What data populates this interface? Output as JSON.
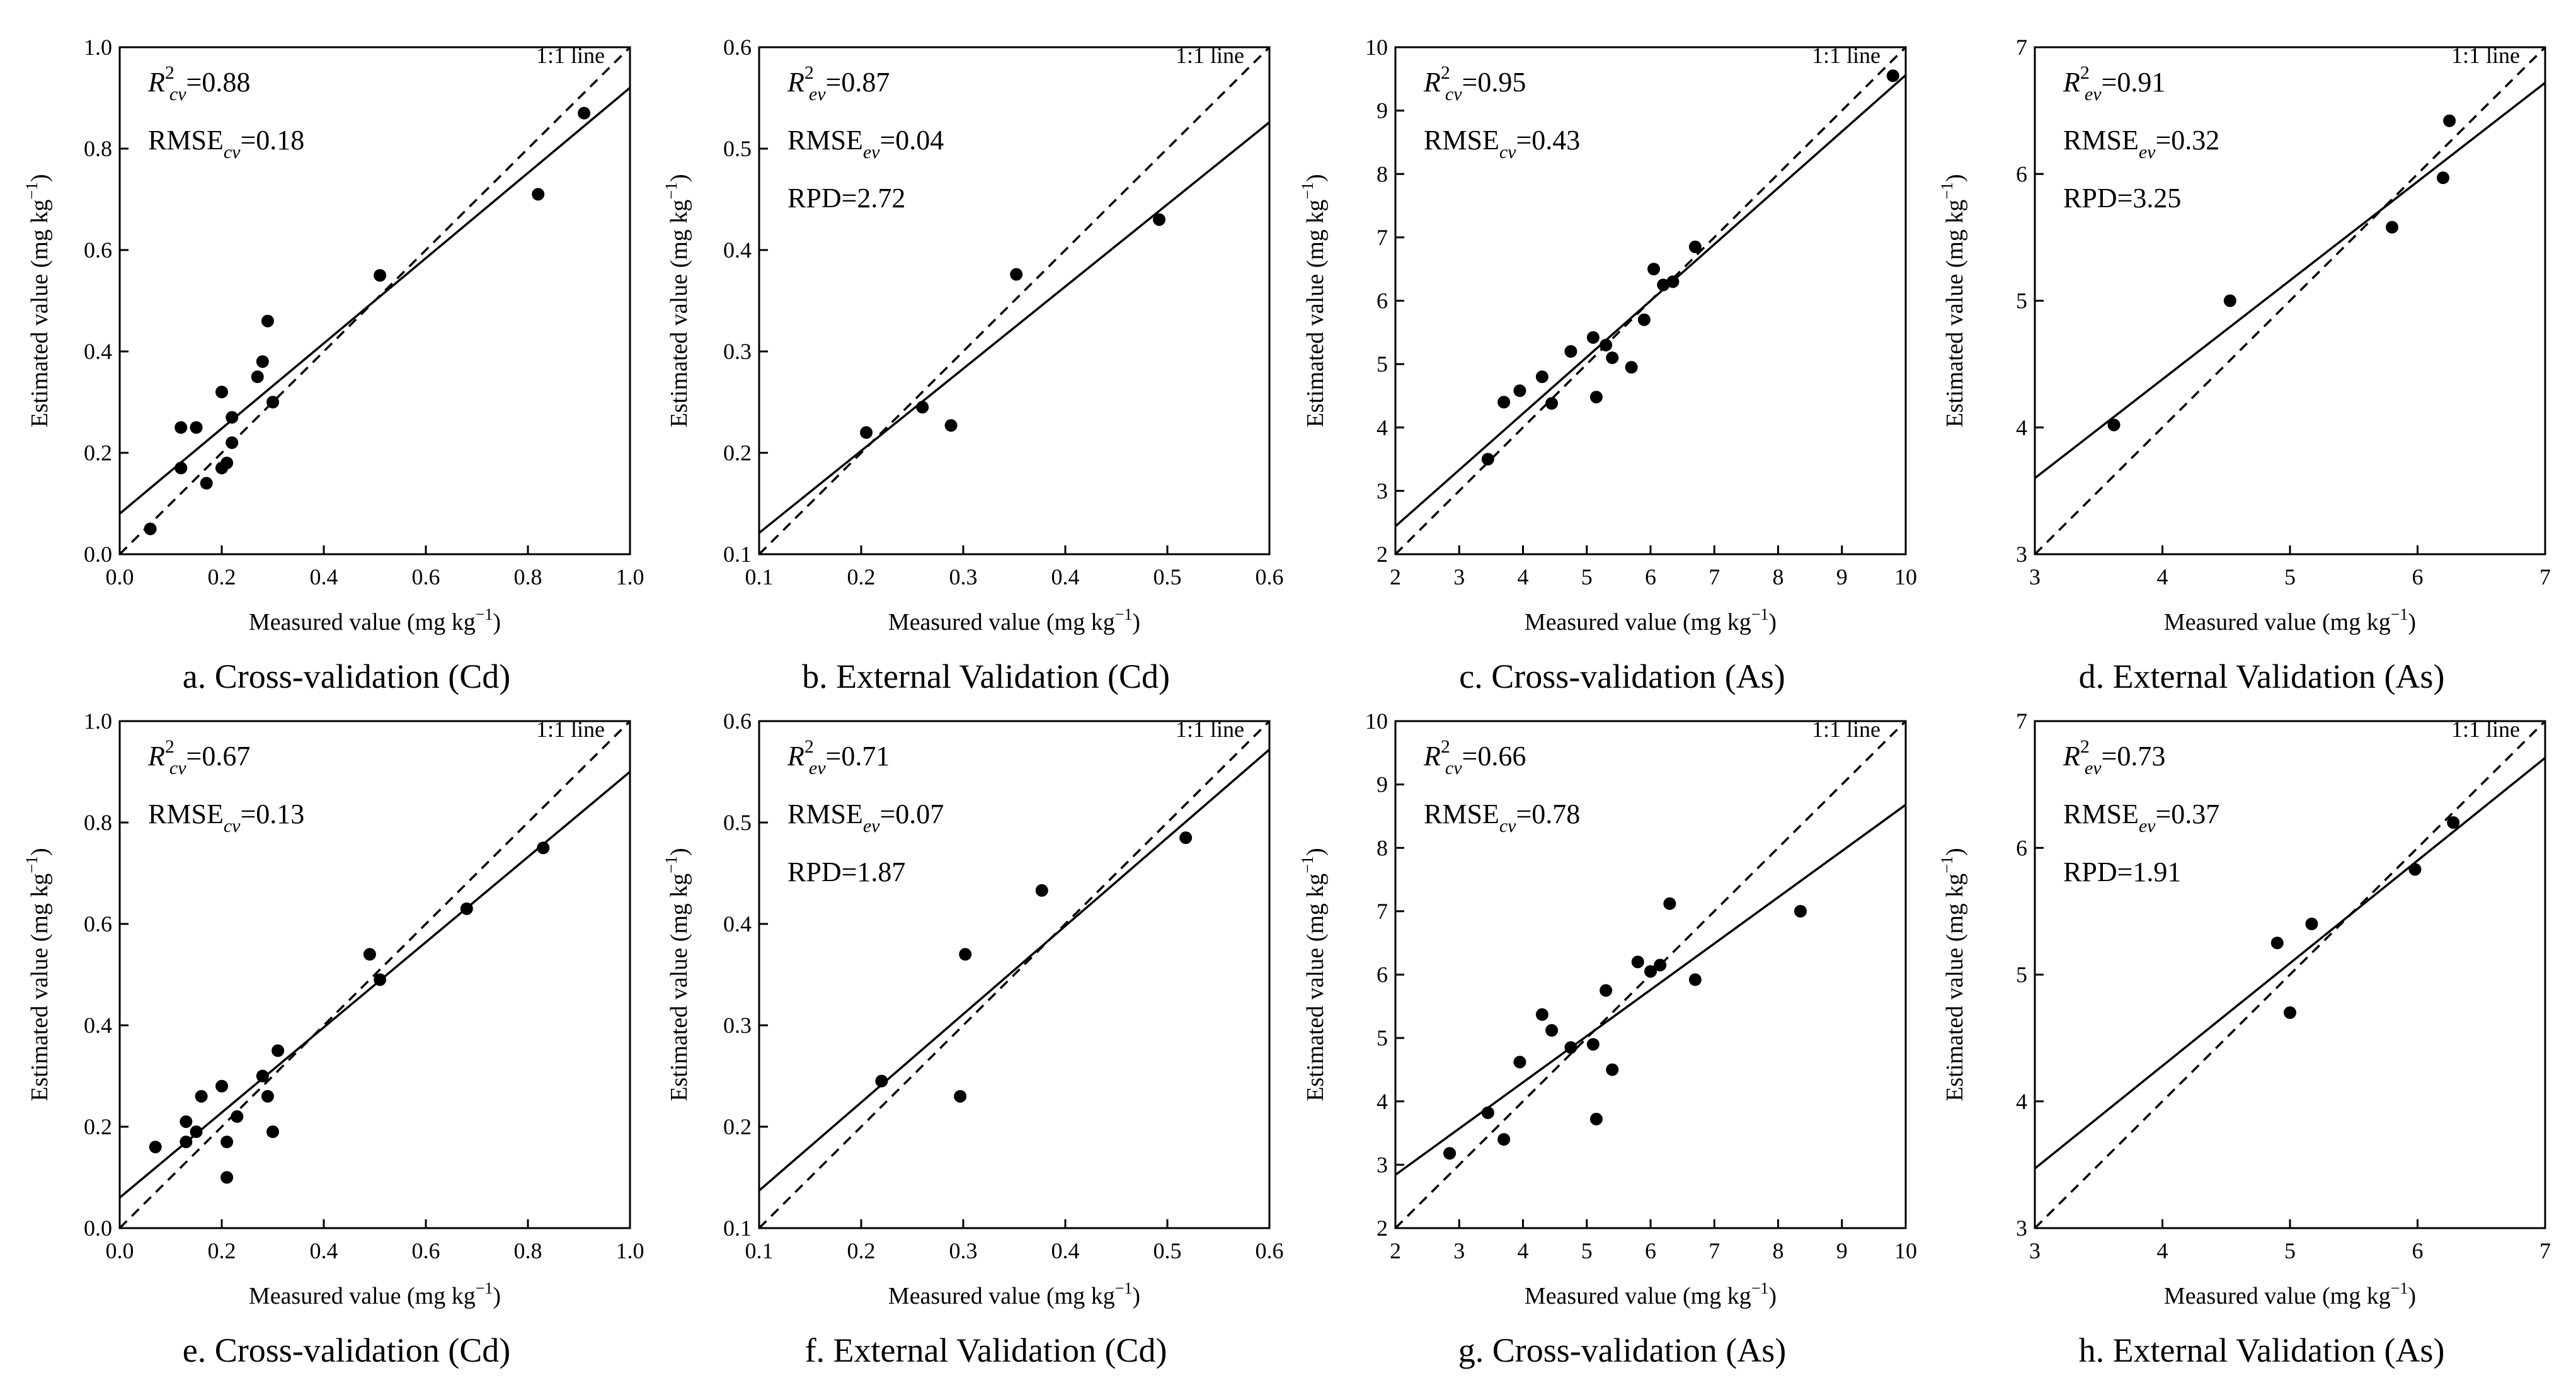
{
  "chart_data": [
    {
      "id": "a",
      "type": "scatter",
      "caption": "a. Cross-validation (Cd)",
      "xlabel": "Measured value (mg kg",
      "ylabel": "Estimated value (mg kg",
      "unit_exp": "−1",
      "unit_close": ")",
      "xlim": [
        0.0,
        1.0
      ],
      "ylim": [
        0.0,
        1.0
      ],
      "xticks": [
        0.0,
        0.2,
        0.4,
        0.6,
        0.8,
        1.0
      ],
      "yticks": [
        0.0,
        0.2,
        0.4,
        0.6,
        0.8,
        1.0
      ],
      "tick_decimals": 1,
      "line_label": "1:1 line",
      "fit": {
        "slope": 0.84,
        "intercept": 0.08
      },
      "stats": [
        {
          "prefix": "R",
          "sup": "2",
          "sub": "cv",
          "value": "=0.88"
        },
        {
          "prefix": "RMSE",
          "sup": "",
          "sub": "cv",
          "value": "=0.18"
        }
      ],
      "points": [
        [
          0.06,
          0.05
        ],
        [
          0.12,
          0.25
        ],
        [
          0.12,
          0.17
        ],
        [
          0.15,
          0.25
        ],
        [
          0.17,
          0.14
        ],
        [
          0.2,
          0.32
        ],
        [
          0.2,
          0.17
        ],
        [
          0.21,
          0.18
        ],
        [
          0.22,
          0.27
        ],
        [
          0.22,
          0.22
        ],
        [
          0.27,
          0.35
        ],
        [
          0.28,
          0.38
        ],
        [
          0.29,
          0.46
        ],
        [
          0.3,
          0.3
        ],
        [
          0.51,
          0.55
        ],
        [
          0.82,
          0.71
        ],
        [
          0.91,
          0.87
        ]
      ]
    },
    {
      "id": "b",
      "type": "scatter",
      "caption": "b. External Validation (Cd)",
      "xlabel": "Measured value (mg kg",
      "ylabel": "Estimated value (mg kg",
      "unit_exp": "−1",
      "unit_close": ")",
      "xlim": [
        0.1,
        0.6
      ],
      "ylim": [
        0.1,
        0.6
      ],
      "xticks": [
        0.1,
        0.2,
        0.3,
        0.4,
        0.5,
        0.6
      ],
      "yticks": [
        0.1,
        0.2,
        0.3,
        0.4,
        0.5,
        0.6
      ],
      "tick_decimals": 1,
      "line_label": "1:1 line",
      "fit": {
        "slope": 0.81,
        "intercept": 0.04
      },
      "stats": [
        {
          "prefix": "R",
          "sup": "2",
          "sub": "ev",
          "value": "=0.87"
        },
        {
          "prefix": "RMSE",
          "sup": "",
          "sub": "ev",
          "value": "=0.04"
        },
        {
          "prefix": "RPD",
          "sup": "",
          "sub": "",
          "value": "=2.72"
        }
      ],
      "points": [
        [
          0.205,
          0.22
        ],
        [
          0.26,
          0.245
        ],
        [
          0.288,
          0.227
        ],
        [
          0.352,
          0.376
        ],
        [
          0.492,
          0.43
        ]
      ]
    },
    {
      "id": "c",
      "type": "scatter",
      "caption": "c. Cross-validation (As)",
      "xlabel": "Measured value (mg kg",
      "ylabel": "Estimated value (mg kg",
      "unit_exp": "−1",
      "unit_close": ")",
      "xlim": [
        2,
        10
      ],
      "ylim": [
        2,
        10
      ],
      "xticks": [
        2,
        3,
        4,
        5,
        6,
        7,
        8,
        9,
        10
      ],
      "yticks": [
        2,
        3,
        4,
        5,
        6,
        7,
        8,
        9,
        10
      ],
      "tick_decimals": 0,
      "line_label": "1:1 line",
      "fit": {
        "slope": 0.89,
        "intercept": 0.66
      },
      "stats": [
        {
          "prefix": "R",
          "sup": "2",
          "sub": "cv",
          "value": "=0.95"
        },
        {
          "prefix": "RMSE",
          "sup": "",
          "sub": "cv",
          "value": "=0.43"
        }
      ],
      "points": [
        [
          3.45,
          3.5
        ],
        [
          3.7,
          4.4
        ],
        [
          3.95,
          4.58
        ],
        [
          4.3,
          4.8
        ],
        [
          4.45,
          4.38
        ],
        [
          4.75,
          5.2
        ],
        [
          5.1,
          5.42
        ],
        [
          5.15,
          4.48
        ],
        [
          5.3,
          5.3
        ],
        [
          5.4,
          5.1
        ],
        [
          5.7,
          4.95
        ],
        [
          5.9,
          5.7
        ],
        [
          6.05,
          6.5
        ],
        [
          6.2,
          6.25
        ],
        [
          6.35,
          6.3
        ],
        [
          6.7,
          6.85
        ],
        [
          9.8,
          9.55
        ]
      ]
    },
    {
      "id": "d",
      "type": "scatter",
      "caption": "d. External Validation (As)",
      "xlabel": "Measured value (mg kg",
      "ylabel": "Estimated value (mg kg",
      "unit_exp": "−1",
      "unit_close": ")",
      "xlim": [
        3,
        7
      ],
      "ylim": [
        3,
        7
      ],
      "xticks": [
        3,
        4,
        5,
        6,
        7
      ],
      "yticks": [
        3,
        4,
        5,
        6,
        7
      ],
      "tick_decimals": 0,
      "line_label": "1:1 line",
      "fit": {
        "slope": 0.78,
        "intercept": 1.26
      },
      "stats": [
        {
          "prefix": "R",
          "sup": "2",
          "sub": "ev",
          "value": "=0.91"
        },
        {
          "prefix": "RMSE",
          "sup": "",
          "sub": "ev",
          "value": "=0.32"
        },
        {
          "prefix": "RPD",
          "sup": "",
          "sub": "",
          "value": "=3.25"
        }
      ],
      "points": [
        [
          3.62,
          4.02
        ],
        [
          4.53,
          5.0
        ],
        [
          5.8,
          5.58
        ],
        [
          6.2,
          5.97
        ],
        [
          6.25,
          6.42
        ]
      ]
    },
    {
      "id": "e",
      "type": "scatter",
      "caption": "e. Cross-validation (Cd)",
      "xlabel": "Measured value (mg kg",
      "ylabel": "Estimated value (mg kg",
      "unit_exp": "−1",
      "unit_close": ")",
      "xlim": [
        0.0,
        1.0
      ],
      "ylim": [
        0.0,
        1.0
      ],
      "xticks": [
        0.0,
        0.2,
        0.4,
        0.6,
        0.8,
        1.0
      ],
      "yticks": [
        0.0,
        0.2,
        0.4,
        0.6,
        0.8,
        1.0
      ],
      "tick_decimals": 1,
      "line_label": "1:1 line",
      "fit": {
        "slope": 0.84,
        "intercept": 0.06
      },
      "stats": [
        {
          "prefix": "R",
          "sup": "2",
          "sub": "cv",
          "value": "=0.67"
        },
        {
          "prefix": "RMSE",
          "sup": "",
          "sub": "cv",
          "value": "=0.13"
        }
      ],
      "points": [
        [
          0.07,
          0.16
        ],
        [
          0.13,
          0.21
        ],
        [
          0.13,
          0.17
        ],
        [
          0.15,
          0.19
        ],
        [
          0.16,
          0.26
        ],
        [
          0.2,
          0.28
        ],
        [
          0.21,
          0.17
        ],
        [
          0.21,
          0.1
        ],
        [
          0.23,
          0.22
        ],
        [
          0.28,
          0.3
        ],
        [
          0.29,
          0.26
        ],
        [
          0.3,
          0.19
        ],
        [
          0.31,
          0.35
        ],
        [
          0.49,
          0.54
        ],
        [
          0.51,
          0.49
        ],
        [
          0.68,
          0.63
        ],
        [
          0.83,
          0.75
        ]
      ]
    },
    {
      "id": "f",
      "type": "scatter",
      "caption": "f. External Validation (Cd)",
      "xlabel": "Measured value (mg kg",
      "ylabel": "Estimated value (mg kg",
      "unit_exp": "−1",
      "unit_close": ")",
      "xlim": [
        0.1,
        0.6
      ],
      "ylim": [
        0.1,
        0.6
      ],
      "xticks": [
        0.1,
        0.2,
        0.3,
        0.4,
        0.5,
        0.6
      ],
      "yticks": [
        0.1,
        0.2,
        0.3,
        0.4,
        0.5,
        0.6
      ],
      "tick_decimals": 1,
      "line_label": "1:1 line",
      "fit": {
        "slope": 0.87,
        "intercept": 0.05
      },
      "stats": [
        {
          "prefix": "R",
          "sup": "2",
          "sub": "ev",
          "value": "=0.71"
        },
        {
          "prefix": "RMSE",
          "sup": "",
          "sub": "ev",
          "value": "=0.07"
        },
        {
          "prefix": "RPD",
          "sup": "",
          "sub": "",
          "value": "=1.87"
        }
      ],
      "points": [
        [
          0.22,
          0.245
        ],
        [
          0.297,
          0.23
        ],
        [
          0.302,
          0.37
        ],
        [
          0.377,
          0.433
        ],
        [
          0.518,
          0.485
        ]
      ]
    },
    {
      "id": "g",
      "type": "scatter",
      "caption": "g. Cross-validation (As)",
      "xlabel": "Measured value (mg kg",
      "ylabel": "Estimated value (mg kg",
      "unit_exp": "−1",
      "unit_close": ")",
      "xlim": [
        2,
        10
      ],
      "ylim": [
        2,
        10
      ],
      "xticks": [
        2,
        3,
        4,
        5,
        6,
        7,
        8,
        9,
        10
      ],
      "yticks": [
        2,
        3,
        4,
        5,
        6,
        7,
        8,
        9,
        10
      ],
      "tick_decimals": 0,
      "line_label": "1:1 line",
      "fit": {
        "slope": 0.73,
        "intercept": 1.38
      },
      "stats": [
        {
          "prefix": "R",
          "sup": "2",
          "sub": "cv",
          "value": "=0.66"
        },
        {
          "prefix": "RMSE",
          "sup": "",
          "sub": "cv",
          "value": "=0.78"
        }
      ],
      "points": [
        [
          2.85,
          3.18
        ],
        [
          3.45,
          3.82
        ],
        [
          3.7,
          3.4
        ],
        [
          3.95,
          4.62
        ],
        [
          4.3,
          5.37
        ],
        [
          4.45,
          5.12
        ],
        [
          4.75,
          4.85
        ],
        [
          5.1,
          4.9
        ],
        [
          5.15,
          3.72
        ],
        [
          5.3,
          5.75
        ],
        [
          5.4,
          4.5
        ],
        [
          5.8,
          6.2
        ],
        [
          6.0,
          6.05
        ],
        [
          6.15,
          6.15
        ],
        [
          6.3,
          7.12
        ],
        [
          6.7,
          5.92
        ],
        [
          8.35,
          7.0
        ]
      ]
    },
    {
      "id": "h",
      "type": "scatter",
      "caption": "h. External Validation (As)",
      "xlabel": "Measured value (mg kg",
      "ylabel": "Estimated value (mg kg",
      "unit_exp": "−1",
      "unit_close": ")",
      "xlim": [
        3,
        7
      ],
      "ylim": [
        3,
        7
      ],
      "xticks": [
        3,
        4,
        5,
        6,
        7
      ],
      "yticks": [
        3,
        4,
        5,
        6,
        7
      ],
      "tick_decimals": 0,
      "line_label": "1:1 line",
      "fit": {
        "slope": 0.81,
        "intercept": 1.04
      },
      "stats": [
        {
          "prefix": "R",
          "sup": "2",
          "sub": "ev",
          "value": "=0.73"
        },
        {
          "prefix": "RMSE",
          "sup": "",
          "sub": "ev",
          "value": "=0.37"
        },
        {
          "prefix": "RPD",
          "sup": "",
          "sub": "",
          "value": "=1.91"
        }
      ],
      "points": [
        [
          4.9,
          5.25
        ],
        [
          5.0,
          4.7
        ],
        [
          5.17,
          5.4
        ],
        [
          5.98,
          5.83
        ],
        [
          6.28,
          6.2
        ]
      ]
    }
  ]
}
